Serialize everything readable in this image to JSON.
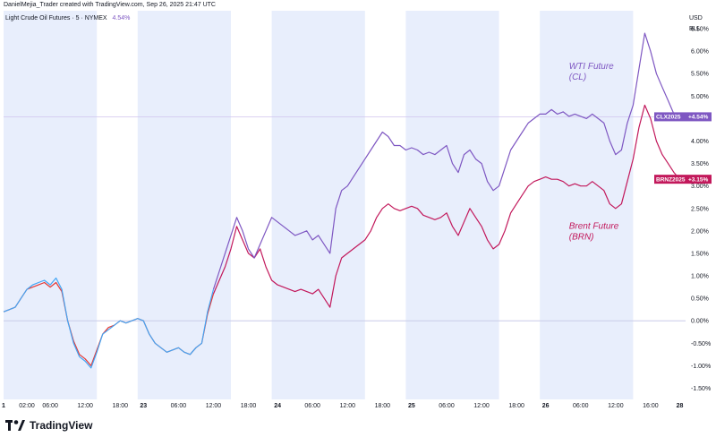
{
  "header": {
    "attribution": "DanielMejia_Trader created with TradingView.com, Sep 26, 2025 21:47 UTC",
    "symbol": "Light Crude Oil Futures · 5 · NYMEX",
    "change": "4.54%"
  },
  "axis": {
    "currency": "USD",
    "unit": "BLL"
  },
  "brand": {
    "name": "TradingView"
  },
  "colors": {
    "wti": "#7e57c2",
    "brent": "#c2185b",
    "pre": "#42a5f5",
    "red_pre": "#e53935",
    "session": "#e8eefc"
  },
  "chart_data": {
    "type": "line",
    "y_unit": "%",
    "ylim": [
      -1.75,
      6.9
    ],
    "y_ticks": [
      -1.5,
      -1.0,
      -0.5,
      0.0,
      0.5,
      1.0,
      1.5,
      2.0,
      2.5,
      3.0,
      3.5,
      4.0,
      4.5,
      5.0,
      5.5,
      6.0,
      6.5
    ],
    "y_tick_labels": [
      "-1.50%",
      "-1.00%",
      "-0.50%",
      "0.00%",
      "0.50%",
      "1.00%",
      "1.50%",
      "2.00%",
      "2.50%",
      "3.00%",
      "3.50%",
      "4.00%",
      "4.50%",
      "5.00%",
      "5.50%",
      "6.00%",
      "6.50%"
    ],
    "x_unit": "hours since 00:00 of the first day",
    "xlim": [
      0,
      117
    ],
    "x_ticks": [
      {
        "t": 0,
        "label": "1",
        "bold": true
      },
      {
        "t": 4,
        "label": "02:00"
      },
      {
        "t": 8,
        "label": "06:00"
      },
      {
        "t": 14,
        "label": "12:00"
      },
      {
        "t": 20,
        "label": "18:00"
      },
      {
        "t": 24,
        "label": "23",
        "bold": true
      },
      {
        "t": 30,
        "label": "06:00"
      },
      {
        "t": 36,
        "label": "12:00"
      },
      {
        "t": 42,
        "label": "18:00"
      },
      {
        "t": 47,
        "label": "24",
        "bold": true
      },
      {
        "t": 53,
        "label": "06:00"
      },
      {
        "t": 59,
        "label": "12:00"
      },
      {
        "t": 65,
        "label": "18:00"
      },
      {
        "t": 70,
        "label": "25",
        "bold": true
      },
      {
        "t": 76,
        "label": "06:00"
      },
      {
        "t": 82,
        "label": "12:00"
      },
      {
        "t": 88,
        "label": "18:00"
      },
      {
        "t": 93,
        "label": "26",
        "bold": true
      },
      {
        "t": 99,
        "label": "06:00"
      },
      {
        "t": 105,
        "label": "12:00"
      },
      {
        "t": 111,
        "label": "16:00"
      },
      {
        "t": 116,
        "label": "28",
        "bold": true
      }
    ],
    "sessions": [
      [
        0,
        16
      ],
      [
        23,
        39
      ],
      [
        46,
        62
      ],
      [
        69,
        85
      ],
      [
        92,
        108
      ]
    ],
    "series": [
      {
        "name": "WTI Future (CL)",
        "tag": "CLX2025",
        "last_label": "+4.54%",
        "last": 4.54,
        "points": [
          [
            0,
            0.2
          ],
          [
            1,
            0.25
          ],
          [
            2,
            0.3
          ],
          [
            3,
            0.5
          ],
          [
            4,
            0.7
          ],
          [
            5,
            0.8
          ],
          [
            6,
            0.85
          ],
          [
            7,
            0.9
          ],
          [
            8,
            0.8
          ],
          [
            9,
            0.95
          ],
          [
            10,
            0.7
          ],
          [
            11,
            0.0
          ],
          [
            12,
            -0.5
          ],
          [
            13,
            -0.8
          ],
          [
            14,
            -0.9
          ],
          [
            15,
            -1.05
          ],
          [
            16,
            -0.7
          ],
          [
            17,
            -0.3
          ],
          [
            18,
            -0.2
          ],
          [
            19,
            -0.1
          ],
          [
            20,
            0.0
          ],
          [
            21,
            -0.05
          ],
          [
            22,
            0.0
          ],
          [
            23,
            0.05
          ],
          [
            24,
            0.0
          ],
          [
            25,
            -0.3
          ],
          [
            26,
            -0.5
          ],
          [
            27,
            -0.6
          ],
          [
            28,
            -0.7
          ],
          [
            29,
            -0.65
          ],
          [
            30,
            -0.6
          ],
          [
            31,
            -0.7
          ],
          [
            32,
            -0.75
          ],
          [
            33,
            -0.6
          ],
          [
            34,
            -0.5
          ],
          [
            35,
            0.2
          ],
          [
            36,
            0.7
          ],
          [
            37,
            1.1
          ],
          [
            38,
            1.5
          ],
          [
            39,
            1.9
          ],
          [
            40,
            2.3
          ],
          [
            41,
            2.0
          ],
          [
            42,
            1.6
          ],
          [
            43,
            1.4
          ],
          [
            44,
            1.7
          ],
          [
            45,
            2.0
          ],
          [
            46,
            2.3
          ],
          [
            47,
            2.2
          ],
          [
            48,
            2.1
          ],
          [
            49,
            2.0
          ],
          [
            50,
            1.9
          ],
          [
            51,
            1.95
          ],
          [
            52,
            2.0
          ],
          [
            53,
            1.8
          ],
          [
            54,
            1.9
          ],
          [
            55,
            1.7
          ],
          [
            56,
            1.5
          ],
          [
            57,
            2.5
          ],
          [
            58,
            2.9
          ],
          [
            59,
            3.0
          ],
          [
            60,
            3.2
          ],
          [
            61,
            3.4
          ],
          [
            62,
            3.6
          ],
          [
            63,
            3.8
          ],
          [
            64,
            4.0
          ],
          [
            65,
            4.2
          ],
          [
            66,
            4.1
          ],
          [
            67,
            3.9
          ],
          [
            68,
            3.9
          ],
          [
            69,
            3.8
          ],
          [
            70,
            3.85
          ],
          [
            71,
            3.8
          ],
          [
            72,
            3.7
          ],
          [
            73,
            3.75
          ],
          [
            74,
            3.7
          ],
          [
            75,
            3.8
          ],
          [
            76,
            3.9
          ],
          [
            77,
            3.5
          ],
          [
            78,
            3.3
          ],
          [
            79,
            3.7
          ],
          [
            80,
            3.8
          ],
          [
            81,
            3.6
          ],
          [
            82,
            3.5
          ],
          [
            83,
            3.1
          ],
          [
            84,
            2.9
          ],
          [
            85,
            3.0
          ],
          [
            86,
            3.4
          ],
          [
            87,
            3.8
          ],
          [
            88,
            4.0
          ],
          [
            89,
            4.2
          ],
          [
            90,
            4.4
          ],
          [
            91,
            4.5
          ],
          [
            92,
            4.6
          ],
          [
            93,
            4.6
          ],
          [
            94,
            4.7
          ],
          [
            95,
            4.6
          ],
          [
            96,
            4.65
          ],
          [
            97,
            4.55
          ],
          [
            98,
            4.6
          ],
          [
            99,
            4.55
          ],
          [
            100,
            4.5
          ],
          [
            101,
            4.6
          ],
          [
            102,
            4.5
          ],
          [
            103,
            4.4
          ],
          [
            104,
            4.0
          ],
          [
            105,
            3.7
          ],
          [
            106,
            3.8
          ],
          [
            107,
            4.4
          ],
          [
            108,
            4.8
          ],
          [
            109,
            5.6
          ],
          [
            110,
            6.4
          ],
          [
            111,
            6.0
          ],
          [
            112,
            5.5
          ],
          [
            113,
            5.2
          ],
          [
            114,
            4.9
          ],
          [
            115,
            4.6
          ],
          [
            116,
            4.54
          ]
        ]
      },
      {
        "name": "Brent Future (BRN)",
        "tag": "BRNZ2025",
        "last_label": "+3.15%",
        "last": 3.15,
        "points": [
          [
            0,
            0.2
          ],
          [
            1,
            0.25
          ],
          [
            2,
            0.3
          ],
          [
            3,
            0.5
          ],
          [
            4,
            0.7
          ],
          [
            5,
            0.75
          ],
          [
            6,
            0.8
          ],
          [
            7,
            0.85
          ],
          [
            8,
            0.75
          ],
          [
            9,
            0.85
          ],
          [
            10,
            0.65
          ],
          [
            11,
            0.0
          ],
          [
            12,
            -0.45
          ],
          [
            13,
            -0.75
          ],
          [
            14,
            -0.85
          ],
          [
            15,
            -1.0
          ],
          [
            16,
            -0.65
          ],
          [
            17,
            -0.3
          ],
          [
            18,
            -0.15
          ],
          [
            19,
            -0.1
          ],
          [
            20,
            0.0
          ],
          [
            21,
            -0.05
          ],
          [
            22,
            0.0
          ],
          [
            23,
            0.05
          ],
          [
            24,
            0.0
          ],
          [
            25,
            -0.3
          ],
          [
            26,
            -0.5
          ],
          [
            27,
            -0.6
          ],
          [
            28,
            -0.7
          ],
          [
            29,
            -0.65
          ],
          [
            30,
            -0.6
          ],
          [
            31,
            -0.7
          ],
          [
            32,
            -0.75
          ],
          [
            33,
            -0.6
          ],
          [
            34,
            -0.5
          ],
          [
            35,
            0.15
          ],
          [
            36,
            0.6
          ],
          [
            37,
            0.9
          ],
          [
            38,
            1.2
          ],
          [
            39,
            1.6
          ],
          [
            40,
            2.1
          ],
          [
            41,
            1.8
          ],
          [
            42,
            1.5
          ],
          [
            43,
            1.4
          ],
          [
            44,
            1.6
          ],
          [
            45,
            1.2
          ],
          [
            46,
            0.9
          ],
          [
            47,
            0.8
          ],
          [
            48,
            0.75
          ],
          [
            49,
            0.7
          ],
          [
            50,
            0.65
          ],
          [
            51,
            0.7
          ],
          [
            52,
            0.65
          ],
          [
            53,
            0.6
          ],
          [
            54,
            0.7
          ],
          [
            55,
            0.5
          ],
          [
            56,
            0.3
          ],
          [
            57,
            1.0
          ],
          [
            58,
            1.4
          ],
          [
            59,
            1.5
          ],
          [
            60,
            1.6
          ],
          [
            61,
            1.7
          ],
          [
            62,
            1.8
          ],
          [
            63,
            2.0
          ],
          [
            64,
            2.3
          ],
          [
            65,
            2.5
          ],
          [
            66,
            2.6
          ],
          [
            67,
            2.5
          ],
          [
            68,
            2.45
          ],
          [
            69,
            2.5
          ],
          [
            70,
            2.55
          ],
          [
            71,
            2.5
          ],
          [
            72,
            2.35
          ],
          [
            73,
            2.3
          ],
          [
            74,
            2.25
          ],
          [
            75,
            2.3
          ],
          [
            76,
            2.4
          ],
          [
            77,
            2.1
          ],
          [
            78,
            1.9
          ],
          [
            79,
            2.2
          ],
          [
            80,
            2.5
          ],
          [
            81,
            2.3
          ],
          [
            82,
            2.1
          ],
          [
            83,
            1.8
          ],
          [
            84,
            1.6
          ],
          [
            85,
            1.7
          ],
          [
            86,
            2.0
          ],
          [
            87,
            2.4
          ],
          [
            88,
            2.6
          ],
          [
            89,
            2.8
          ],
          [
            90,
            3.0
          ],
          [
            91,
            3.1
          ],
          [
            92,
            3.15
          ],
          [
            93,
            3.2
          ],
          [
            94,
            3.15
          ],
          [
            95,
            3.15
          ],
          [
            96,
            3.1
          ],
          [
            97,
            3.0
          ],
          [
            98,
            3.05
          ],
          [
            99,
            3.0
          ],
          [
            100,
            3.0
          ],
          [
            101,
            3.1
          ],
          [
            102,
            3.0
          ],
          [
            103,
            2.9
          ],
          [
            104,
            2.6
          ],
          [
            105,
            2.5
          ],
          [
            106,
            2.6
          ],
          [
            107,
            3.1
          ],
          [
            108,
            3.6
          ],
          [
            109,
            4.3
          ],
          [
            110,
            4.8
          ],
          [
            111,
            4.5
          ],
          [
            112,
            4.0
          ],
          [
            113,
            3.7
          ],
          [
            114,
            3.5
          ],
          [
            115,
            3.3
          ],
          [
            116,
            3.15
          ]
        ]
      }
    ],
    "pre_color_until": 36,
    "annotations": [
      {
        "series": 0,
        "lines": [
          "WTI Future",
          "(CL)"
        ],
        "t": 97,
        "y": 5.6
      },
      {
        "series": 1,
        "lines": [
          "Brent Future",
          "(BRN)"
        ],
        "t": 97,
        "y": 2.05
      }
    ]
  }
}
